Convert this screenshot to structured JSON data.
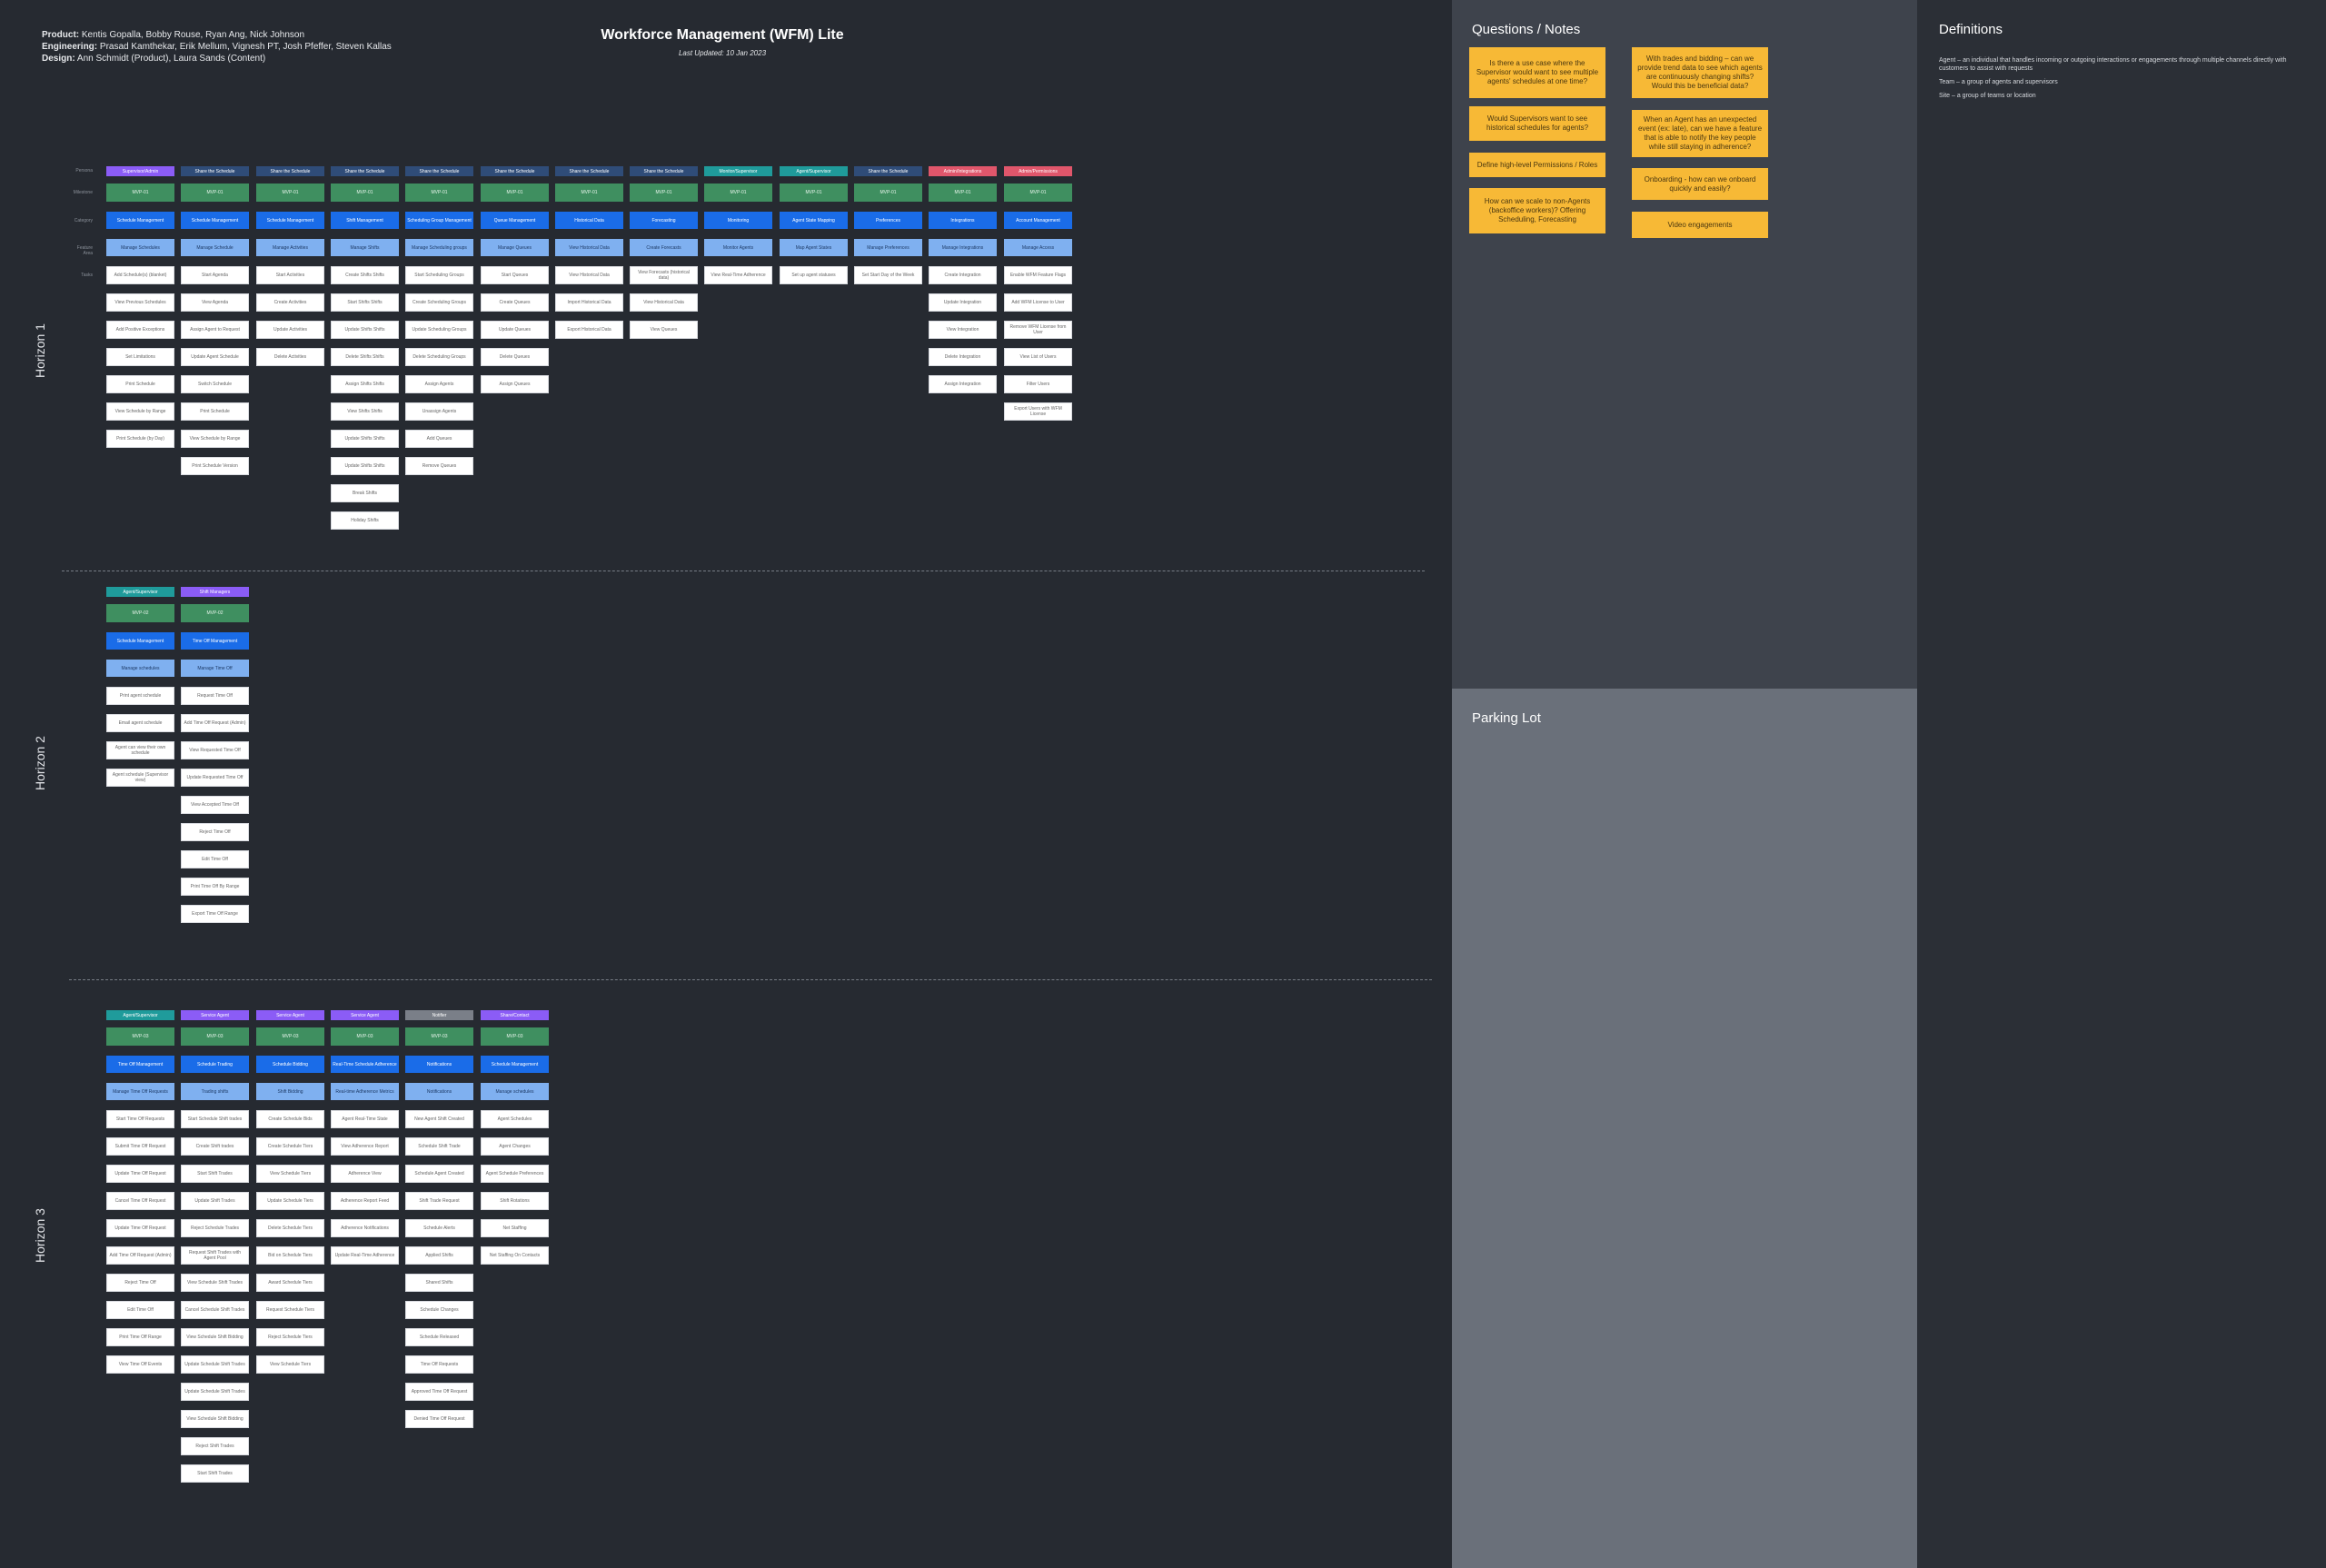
{
  "header": {
    "product_label": "Product:",
    "product": "Kentis Gopalla, Bobby Rouse, Ryan Ang, Nick Johnson",
    "engineering_label": "Engineering:",
    "engineering": "Prasad Kamthekar, Erik Mellum, Vignesh PT, Josh Pfeffer, Steven Kallas",
    "design_label": "Design:",
    "design": "Ann Schmidt (Product), Laura Sands (Content)",
    "title": "Workforce Management (WFM) Lite",
    "updated": "Last Updated: 10 Jan 2023"
  },
  "row_labels": [
    "Persona",
    "Milestone",
    "Category",
    "Feature Area",
    "Tasks"
  ],
  "horizons": [
    {
      "label": "Horizon 1",
      "columns": [
        {
          "head": "Supervisor/Admin",
          "color": "#8b5cf6",
          "milestone": "MVP-01",
          "cat": "Schedule Management",
          "feat": "Manage Schedules",
          "tasks": [
            "Add Schedule(s) (blanket)",
            "View Previous Schedules",
            "Add Positive Exceptions",
            "Set Limitations",
            "Print Schedule",
            "View Schedule by Range",
            "Print Schedule (by Day)"
          ]
        },
        {
          "head": "Share the Schedule",
          "color": "#2f4c78",
          "milestone": "MVP-01",
          "cat": "Schedule Management",
          "feat": "Manage Schedule",
          "tasks": [
            "Start Agenda",
            "View Agenda",
            "Assign Agent to Request",
            "Update Agent Schedule",
            "Switch Schedule",
            "Print Schedule",
            "View Schedule by Range",
            "Print Schedule Version"
          ]
        },
        {
          "head": "Share the Schedule",
          "color": "#2f4c78",
          "milestone": "MVP-01",
          "cat": "Schedule Management",
          "feat": "Manage Activities",
          "tasks": [
            "Start Activities",
            "Create Activities",
            "Update Activities",
            "Delete Activities"
          ]
        },
        {
          "head": "Share the Schedule",
          "color": "#2f4c78",
          "milestone": "MVP-01",
          "cat": "Shift Management",
          "feat": "Manage Shifts",
          "tasks": [
            "Create Shifts Shifts",
            "Start Shifts Shifts",
            "Update Shifts Shifts",
            "Delete Shifts Shifts",
            "Assign Shifts Shifts",
            "View Shifts Shifts",
            "Update Shifts Shifts",
            "Update Shifts Shifts",
            "Break Shifts",
            "Holiday Shifts"
          ]
        },
        {
          "head": "Share the Schedule",
          "color": "#2f4c78",
          "milestone": "MVP-01",
          "cat": "Scheduling Group Management",
          "feat": "Manage Scheduling groups",
          "tasks": [
            "Start Scheduling Groups",
            "Create Scheduling Groups",
            "Update Scheduling Groups",
            "Delete Scheduling Groups",
            "Assign Agents",
            "Unassign Agents",
            "Add Queues",
            "Remove Queues"
          ]
        },
        {
          "head": "Share the Schedule",
          "color": "#2f4c78",
          "milestone": "MVP-01",
          "cat": "Queue Management",
          "feat": "Manage Queues",
          "tasks": [
            "Start Queues",
            "Create Queues",
            "Update Queues",
            "Delete Queues",
            "Assign Queues"
          ]
        },
        {
          "head": "Share the Schedule",
          "color": "#2f4c78",
          "milestone": "MVP-01",
          "cat": "Historical Data",
          "feat": "View Historical Data",
          "tasks": [
            "View Historical Data",
            "Import Historical Data",
            "Export Historical Data"
          ]
        },
        {
          "head": "Share the Schedule",
          "color": "#2f4c78",
          "milestone": "MVP-01",
          "cat": "Forecasting",
          "feat": "Create Forecasts",
          "tasks": [
            "View Forecasts (historical data)",
            "View Historical Data",
            "View Queues"
          ]
        },
        {
          "head": "Monitor/Supervisor",
          "color": "#1f9b9b",
          "milestone": "MVP-01",
          "cat": "Monitoring",
          "feat": "Monitor Agents",
          "tasks": [
            "View Real-Time Adherence"
          ]
        },
        {
          "head": "Agent/Supervisor",
          "color": "#1f9b9b",
          "milestone": "MVP-01",
          "cat": "Agent State Mapping",
          "feat": "Map Agent States",
          "tasks": [
            "Set up agent statuses"
          ]
        },
        {
          "head": "Share the Schedule",
          "color": "#2f4c78",
          "milestone": "MVP-01",
          "cat": "Preferences",
          "feat": "Manage Preferences",
          "tasks": [
            "Set Start Day of the Week"
          ]
        },
        {
          "head": "Admin/Integrations",
          "color": "#e0566b",
          "milestone": "MVP-01",
          "cat": "Integrations",
          "feat": "Manage Integrations",
          "tasks": [
            "Create Integration",
            "Update Integration",
            "View Integration",
            "Delete Integration",
            "Assign Integration"
          ]
        },
        {
          "head": "Admin/Permissions",
          "color": "#e0566b",
          "milestone": "MVP-01",
          "cat": "Account Management",
          "feat": "Manage Access",
          "tasks": [
            "Enable WFM Feature Flags",
            "Add WFM License to User",
            "Remove WFM License from User",
            "View List of Users",
            "Filter Users",
            "Export Users with WFM License"
          ]
        }
      ]
    },
    {
      "label": "Horizon 2",
      "columns": [
        {
          "head": "Agent/Supervisor",
          "color": "#1f9b9b",
          "milestone": "MVP-02",
          "cat": "Schedule Management",
          "feat": "Manage schedules",
          "tasks": [
            "Print agent schedule",
            "Email agent schedule",
            "Agent can view their own schedule",
            "Agent schedule (Supervisor view)"
          ]
        },
        {
          "head": "Shift Managers",
          "color": "#8b5cf6",
          "milestone": "MVP-02",
          "cat": "Time Off Management",
          "feat": "Manage Time Off",
          "tasks": [
            "Request Time Off",
            "Add Time Off Request (Admin)",
            "View Requested Time Off",
            "Update Requested Time Off",
            "View Accepted Time Off",
            "Reject Time Off",
            "Edit Time Off",
            "Print Time Off By Range",
            "Export Time Off Range"
          ]
        }
      ]
    },
    {
      "label": "Horizon 3",
      "columns": [
        {
          "head": "Agent/Supervisor",
          "color": "#1f9b9b",
          "milestone": "MVP-03",
          "cat": "Time Off Management",
          "feat": "Manage Time Off Requests",
          "tasks": [
            "Start Time Off Requests",
            "Submit Time Off Request",
            "Update Time Off Request",
            "Cancel Time Off Request",
            "Update Time Off Request",
            "Add Time Off Request (Admin)",
            "Reject Time Off",
            "Edit Time Off",
            "Print Time Off Range",
            "View Time Off Events"
          ]
        },
        {
          "head": "Service Agent",
          "color": "#8b5cf6",
          "milestone": "MVP-03",
          "cat": "Schedule Trading",
          "feat": "Trading shifts",
          "tasks": [
            "Start Schedule Shift trades",
            "Create Shift trades",
            "Start Shift Trades",
            "Update Shift Trades",
            "Reject Schedule Trades",
            "Request Shift Trades with Agent Pool",
            "View Schedule Shift Trades",
            "Cancel Schedule Shift Trades",
            "View Schedule Shift Bidding",
            "Update Schedule Shift Trades",
            "Update Schedule Shift Trades",
            "View Schedule Shift Bidding",
            "Reject Shift Trades",
            "Start Shift Trades"
          ]
        },
        {
          "head": "Service Agent",
          "color": "#8b5cf6",
          "milestone": "MVP-03",
          "cat": "Schedule Bidding",
          "feat": "Shift Bidding",
          "tasks": [
            "Create Schedule Bids",
            "Create Schedule Tiers",
            "View Schedule Tiers",
            "Update Schedule Tiers",
            "Delete Schedule Tiers",
            "Bid on Schedule Tiers",
            "Award Schedule Tiers",
            "Request Schedule Tiers",
            "Reject Schedule Tiers",
            "View Schedule Tiers"
          ]
        },
        {
          "head": "Service Agent",
          "color": "#8b5cf6",
          "milestone": "MVP-03",
          "cat": "Real-Time Schedule Adherence",
          "feat": "Real-time Adherence Metrics",
          "tasks": [
            "Agent Real-Time State",
            "View Adherence Report",
            "Adherence View",
            "Adherence Report Feed",
            "Adherence Notifications",
            "Update Real-Time Adherence"
          ]
        },
        {
          "head": "Notifier",
          "color": "#7a7f88",
          "milestone": "MVP-03",
          "cat": "Notifications",
          "feat": "Notifications",
          "tasks": [
            "New Agent Shift Created",
            "Schedule Shift Trade",
            "Schedule Agent Created",
            "Shift Trade Request",
            "Schedule Alerts",
            "Applied Shifts",
            "Shared Shifts",
            "Schedule Changes",
            "Schedule Released",
            "Time Off Requests",
            "Approved Time Off Request",
            "Denied Time Off Request"
          ]
        },
        {
          "head": "Share/Contact",
          "color": "#8b5cf6",
          "milestone": "MVP-03",
          "cat": "Schedule Management",
          "feat": "Manage schedules",
          "tasks": [
            "Agent Schedules",
            "Agent Changes",
            "Agent Schedule Preferences",
            "Shift Rotations",
            "Net Staffing",
            "Net Staffing On Contacts"
          ]
        }
      ]
    }
  ],
  "questions": {
    "title": "Questions / Notes",
    "stickies": [
      "Is there a use case where the Supervisor would want to see multiple agents' schedules at one time?",
      "Would Supervisors want to see historical schedules for agents?",
      "Define high-level Permissions / Roles",
      "How can we scale to non-Agents (backoffice workers)? Offering Scheduling, Forecasting",
      "With trades and bidding – can we provide trend data to see which agents are continuously changing shifts? Would this be beneficial data?",
      "When an Agent has an unexpected event (ex: late), can we have a feature that is able to notify the key people while still staying in adherence?",
      "Onboarding - how can we onboard quickly and easily?",
      "Video engagements"
    ]
  },
  "parking_lot": {
    "title": "Parking Lot"
  },
  "definitions": {
    "title": "Definitions",
    "items": [
      "Agent – an individual that handles incoming or outgoing interactions or engagements through multiple channels directly with customers to assist with requests",
      "Team – a group of agents and supervisors",
      "Site – a group of teams or location"
    ]
  }
}
